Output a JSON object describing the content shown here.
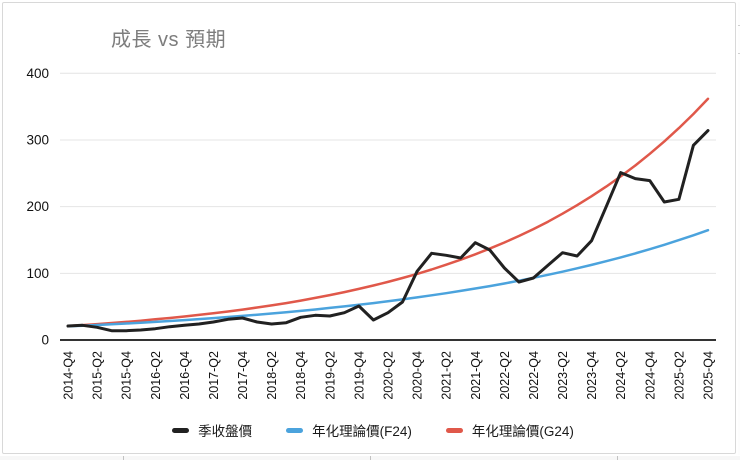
{
  "chart": {
    "title": "成長 vs 預期",
    "title_color": "#7d7d7d",
    "legend": [
      {
        "label": "季收盤價",
        "color": "#212121"
      },
      {
        "label": "年化理論價(F24)",
        "color": "#4ba3dd"
      },
      {
        "label": "年化理論價(G24)",
        "color": "#e0584a"
      }
    ]
  },
  "chart_data": {
    "type": "line",
    "title": "成長 vs 預期",
    "x": [
      "2014-Q4",
      "2015-Q1",
      "2015-Q2",
      "2015-Q3",
      "2015-Q4",
      "2016-Q1",
      "2016-Q2",
      "2016-Q3",
      "2016-Q4",
      "2017-Q1",
      "2017-Q2",
      "2017-Q3",
      "2017-Q4",
      "2018-Q1",
      "2018-Q2",
      "2018-Q3",
      "2018-Q4",
      "2019-Q1",
      "2019-Q2",
      "2019-Q3",
      "2019-Q4",
      "2020-Q1",
      "2020-Q2",
      "2020-Q3",
      "2020-Q4",
      "2021-Q1",
      "2021-Q2",
      "2021-Q3",
      "2021-Q4",
      "2022-Q1",
      "2022-Q2",
      "2022-Q3",
      "2022-Q4",
      "2023-Q1",
      "2023-Q2",
      "2023-Q3",
      "2023-Q4",
      "2024-Q1",
      "2024-Q2",
      "2024-Q3",
      "2024-Q4",
      "2025-Q1",
      "2025-Q2",
      "2025-Q3",
      "2025-Q4"
    ],
    "x_tick_labels": [
      "2014-Q4",
      "2015-Q2",
      "2015-Q4",
      "2016-Q2",
      "2016-Q4",
      "2017-Q2",
      "2017-Q4",
      "2018-Q2",
      "2018-Q4",
      "2019-Q2",
      "2019-Q4",
      "2020-Q2",
      "2020-Q4",
      "2021-Q2",
      "2021-Q4",
      "2022-Q2",
      "2022-Q4",
      "2023-Q2",
      "2023-Q4",
      "2024-Q2",
      "2024-Q4",
      "2025-Q2",
      "2025-Q4"
    ],
    "series": [
      {
        "name": "季收盤價",
        "color": "#212121",
        "values": [
          21,
          22,
          19,
          14,
          14,
          15,
          17,
          20,
          22,
          24,
          27,
          31,
          33,
          27,
          24,
          26,
          34,
          37,
          36,
          41,
          51,
          30,
          41,
          57,
          103,
          130,
          127,
          123,
          146,
          135,
          108,
          87,
          93,
          112,
          131,
          126,
          149,
          200,
          251,
          242,
          239,
          207,
          211,
          292,
          314
        ]
      },
      {
        "name": "年化理論價(F24)",
        "color": "#4ba3dd",
        "values": [
          20.5,
          21.5,
          22.5,
          23.6,
          24.8,
          26.0,
          27.2,
          28.5,
          29.9,
          31.4,
          32.9,
          34.5,
          36.2,
          37.9,
          39.8,
          41.7,
          43.7,
          45.8,
          48.1,
          50.4,
          52.8,
          55.4,
          58.1,
          60.9,
          63.9,
          67.0,
          70.2,
          73.6,
          77.2,
          80.9,
          84.8,
          89.0,
          93.3,
          97.8,
          102.5,
          107.5,
          112.7,
          118.2,
          123.9,
          129.9,
          136.2,
          142.8,
          149.8,
          157.0,
          164.7
        ]
      },
      {
        "name": "年化理論價(G24)",
        "color": "#e0584a",
        "values": [
          21.0,
          22.4,
          23.9,
          25.5,
          27.2,
          29.0,
          31.0,
          33.0,
          35.2,
          37.6,
          40.1,
          42.8,
          45.6,
          48.7,
          51.9,
          55.4,
          59.1,
          63.1,
          67.3,
          71.8,
          76.6,
          81.7,
          87.1,
          93.0,
          99.2,
          105.8,
          112.9,
          120.4,
          128.5,
          137.1,
          146.2,
          156.0,
          166.4,
          177.5,
          189.4,
          202.1,
          215.6,
          230.0,
          245.3,
          261.7,
          279.2,
          297.9,
          317.8,
          339.0,
          361.7
        ]
      }
    ],
    "ylim": [
      0,
      400
    ],
    "y_ticks": [
      0,
      100,
      200,
      300,
      400
    ],
    "grid": true,
    "legend_position": "bottom",
    "x_label_rotation": -90
  }
}
